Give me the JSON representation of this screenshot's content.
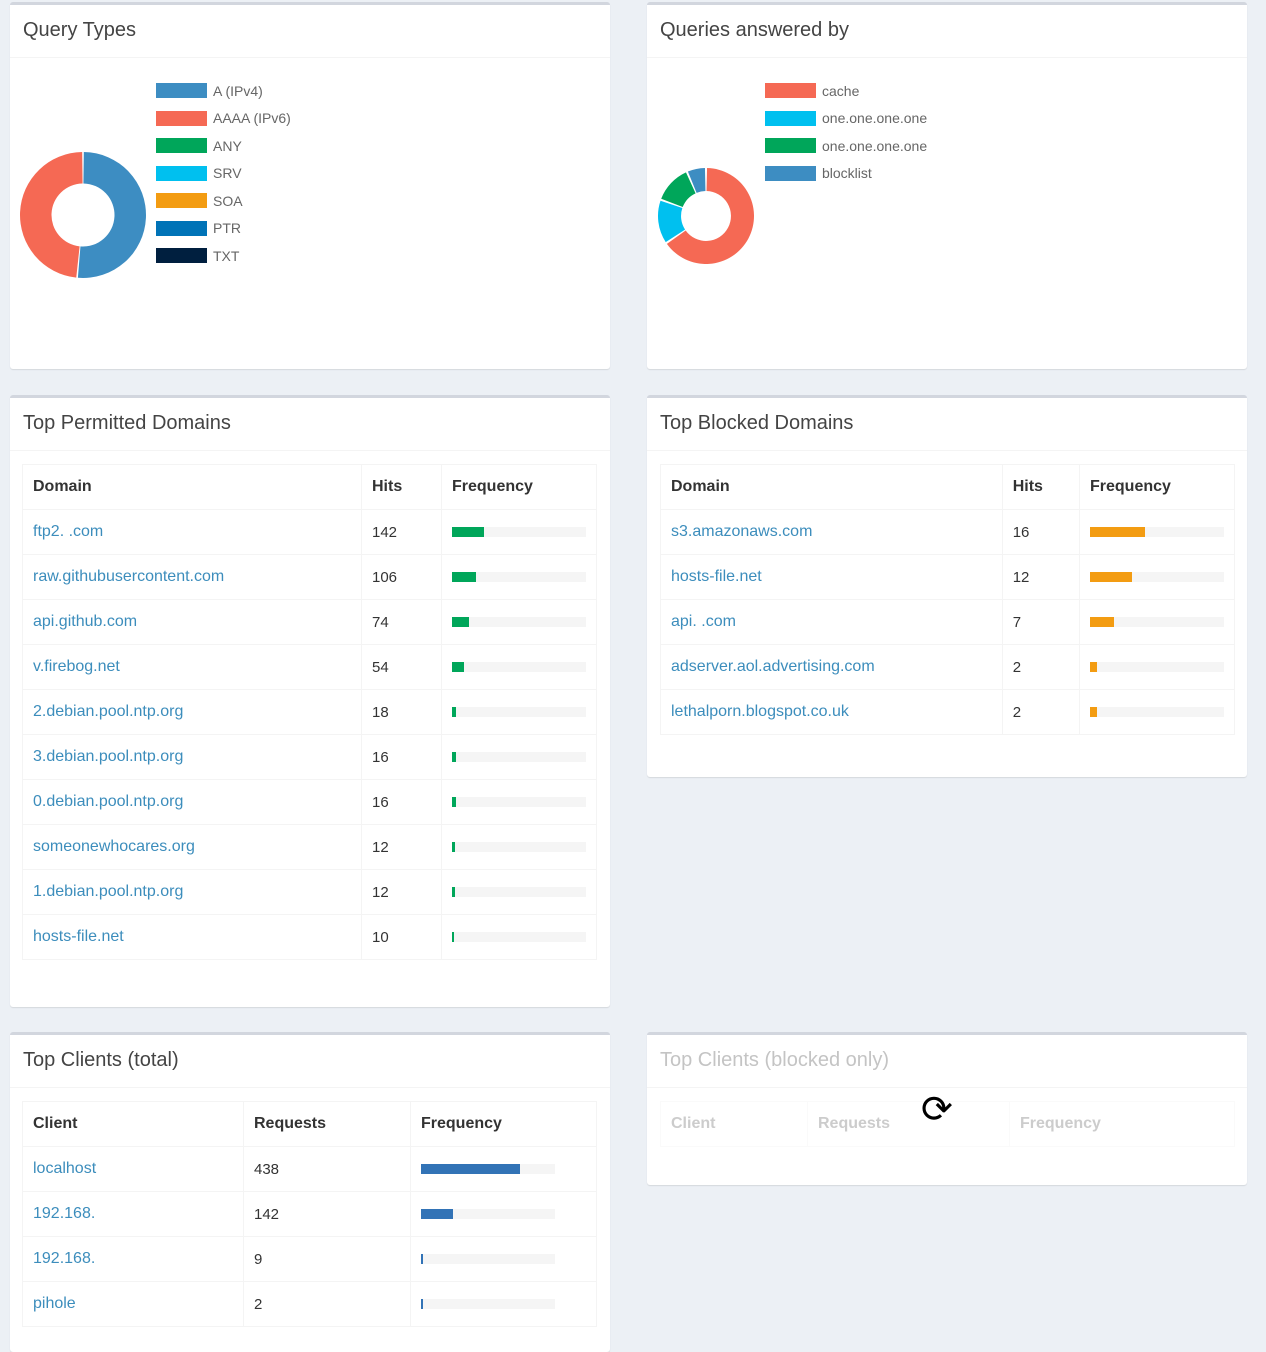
{
  "query_types": {
    "title": "Query Types",
    "legend": [
      {
        "label": "A (IPv4)",
        "color": "#3d8dc2"
      },
      {
        "label": "AAAA (IPv6)",
        "color": "#f56954"
      },
      {
        "label": "ANY",
        "color": "#00a65a"
      },
      {
        "label": "SRV",
        "color": "#00c0ef"
      },
      {
        "label": "SOA",
        "color": "#f39c12"
      },
      {
        "label": "PTR",
        "color": "#0073b7"
      },
      {
        "label": "TXT",
        "color": "#001f3f"
      }
    ],
    "chart_data": {
      "type": "pie",
      "labels": [
        "A (IPv4)",
        "AAAA (IPv6)"
      ],
      "values": [
        51.5,
        48.5
      ],
      "colors": [
        "#3d8dc2",
        "#f56954"
      ]
    }
  },
  "answered_by": {
    "title": "Queries answered by",
    "legend": [
      {
        "label": "cache",
        "color": "#f56954"
      },
      {
        "label": "one.one.one.one",
        "color": "#00c0ef"
      },
      {
        "label": "one.one.one.one",
        "color": "#00a65a"
      },
      {
        "label": "blocklist",
        "color": "#3d8dc2"
      }
    ],
    "chart_data": {
      "type": "pie",
      "labels": [
        "cache",
        "one.one.one.one",
        "one.one.one.one",
        "blocklist"
      ],
      "values": [
        65.5,
        15,
        13,
        6.5
      ],
      "colors": [
        "#f56954",
        "#00c0ef",
        "#00a65a",
        "#3d8dc2"
      ]
    }
  },
  "permitted": {
    "title": "Top Permitted Domains",
    "headers": [
      "Domain",
      "Hits",
      "Frequency"
    ],
    "bar_color": "#00a65a",
    "rows": [
      {
        "domain": "ftp2.        .com",
        "hits": "142",
        "pct": 24
      },
      {
        "domain": "raw.githubusercontent.com",
        "hits": "106",
        "pct": 18
      },
      {
        "domain": "api.github.com",
        "hits": "74",
        "pct": 12.5
      },
      {
        "domain": "v.firebog.net",
        "hits": "54",
        "pct": 9
      },
      {
        "domain": "2.debian.pool.ntp.org",
        "hits": "18",
        "pct": 3
      },
      {
        "domain": "3.debian.pool.ntp.org",
        "hits": "16",
        "pct": 2.7
      },
      {
        "domain": "0.debian.pool.ntp.org",
        "hits": "16",
        "pct": 2.7
      },
      {
        "domain": "someonewhocares.org",
        "hits": "12",
        "pct": 2
      },
      {
        "domain": "1.debian.pool.ntp.org",
        "hits": "12",
        "pct": 2
      },
      {
        "domain": "hosts-file.net",
        "hits": "10",
        "pct": 1.7
      }
    ]
  },
  "blocked": {
    "title": "Top Blocked Domains",
    "headers": [
      "Domain",
      "Hits",
      "Frequency"
    ],
    "bar_color": "#f39c12",
    "rows": [
      {
        "domain": "s3.amazonaws.com",
        "hits": "16",
        "pct": 41
      },
      {
        "domain": "hosts-file.net",
        "hits": "12",
        "pct": 31
      },
      {
        "domain": "api.          .com",
        "hits": "7",
        "pct": 18
      },
      {
        "domain": "adserver.aol.advertising.com",
        "hits": "2",
        "pct": 5
      },
      {
        "domain": "lethalporn.blogspot.co.uk",
        "hits": "2",
        "pct": 5
      }
    ]
  },
  "clients_total": {
    "title": "Top Clients (total)",
    "headers": [
      "Client",
      "Requests",
      "Frequency"
    ],
    "bar_color": "#3273b6",
    "rows": [
      {
        "client": "localhost",
        "requests": "438",
        "pct": 74
      },
      {
        "client": "192.168.",
        "requests": "142",
        "pct": 24
      },
      {
        "client": "192.168.",
        "requests": "9",
        "pct": 1.5
      },
      {
        "client": "pihole",
        "requests": "2",
        "pct": 0.5
      }
    ]
  },
  "clients_blocked": {
    "title": "Top Clients (blocked only)",
    "headers": [
      "Client",
      "Requests",
      "Frequency"
    ],
    "loading_icon": "refresh-icon"
  }
}
